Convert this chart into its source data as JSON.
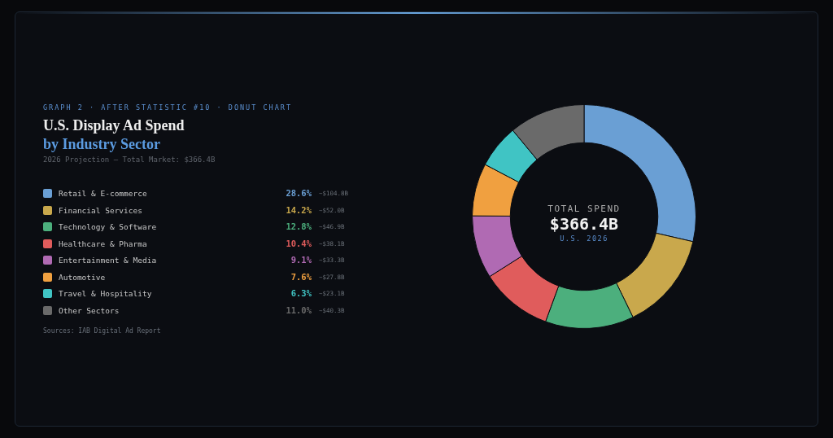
{
  "chart_data": {
    "type": "donut",
    "title": "U.S. Display Ad Spend",
    "subtitle": "by Industry Sector",
    "annotations": [
      "GRAPH 2 · AFTER STATISTIC #10 · DONUT CHART",
      "2026 Projection — Total Market: $366.4B",
      "TOTAL SPEND",
      "$366.4B",
      "U.S. 2026",
      "Sources: IAB Digital Ad Report",
      "~$104.8B",
      "~$52.0B",
      "~$46.9B",
      "~$38.1B",
      "~$33.3B",
      "~$27.8B",
      "~$23.1B",
      "~$40.3B"
    ],
    "categories": [
      "Retail & E-commerce",
      "Financial Services",
      "Technology & Software",
      "Healthcare & Pharma",
      "Entertainment & Media",
      "Automotive",
      "Travel & Hospitality",
      "Other Sectors"
    ],
    "values": [
      28.6,
      14.2,
      12.8,
      10.4,
      9.1,
      7.6,
      6.3,
      11.0
    ],
    "colors": [
      "#6a9fd4",
      "#c9a84c",
      "#4caf7d",
      "#e05c5c",
      "#b06ab3",
      "#f0a040",
      "#40c4c4",
      "#6a6a6a"
    ],
    "value_labels": [
      "28.6%",
      "14.2%",
      "12.8%",
      "10.4%",
      "9.1%",
      "7.6%",
      "6.3%",
      "11.0%"
    ],
    "legend": "left"
  }
}
